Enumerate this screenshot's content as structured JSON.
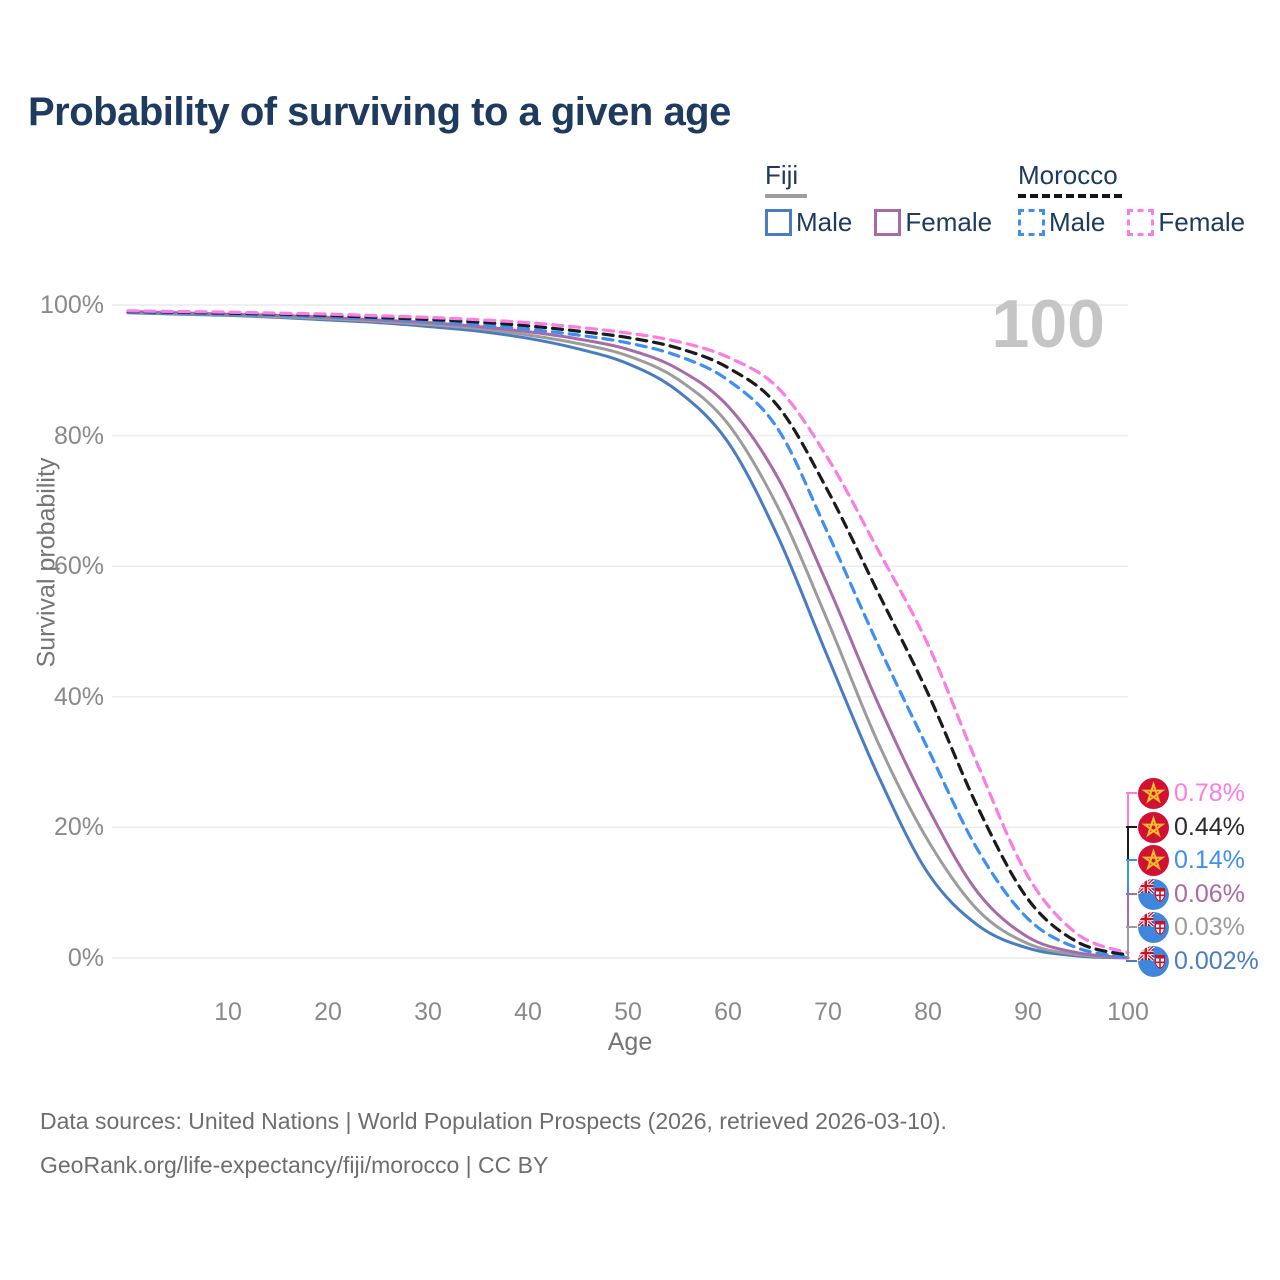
{
  "title": "Probability of surviving to a given age",
  "legend": {
    "groups": [
      {
        "label": "Fiji",
        "line_style": "solid",
        "underline_color": "#9e9e9e",
        "items": [
          {
            "label": "Male",
            "color": "#4a7cc2"
          },
          {
            "label": "Female",
            "color": "#a76ba9"
          }
        ]
      },
      {
        "label": "Morocco",
        "line_style": "dashed",
        "underline_color": "#151515",
        "items": [
          {
            "label": "Male",
            "color": "#3f8ff2"
          },
          {
            "label": "Female",
            "color": "#fb7de4"
          }
        ]
      }
    ]
  },
  "axes": {
    "x": {
      "label": "Age",
      "tick_labels": [
        "10",
        "20",
        "30",
        "40",
        "50",
        "60",
        "70",
        "80",
        "90",
        "100"
      ]
    },
    "y": {
      "label": "Survival probability",
      "tick_labels": [
        "0%",
        "20%",
        "40%",
        "60%",
        "80%",
        "100%"
      ]
    }
  },
  "watermark": "100",
  "footer": {
    "line1": "Data sources: United Nations | World Population Prospects (2026, retrieved 2026-03-10).",
    "line2": "GeoRank.org/life-expectancy/fiji/morocco | CC BY"
  },
  "chart_data": {
    "type": "line",
    "title": "Probability of surviving to a given age",
    "xlabel": "Age",
    "ylabel": "Survival probability",
    "xlim": [
      0,
      100
    ],
    "ylim": [
      0,
      100
    ],
    "grid": "horizontal",
    "legend_position": "top-right",
    "age_highlight": "100",
    "series": [
      {
        "name": "Fiji Male",
        "country": "Fiji",
        "flag": "fiji-flag",
        "color": "#4a7cc2",
        "line": "solid",
        "end_label": "0.002%",
        "points": [
          [
            0,
            98.8
          ],
          [
            5,
            98.6
          ],
          [
            10,
            98.4
          ],
          [
            15,
            98.1
          ],
          [
            20,
            97.7
          ],
          [
            25,
            97.3
          ],
          [
            30,
            96.7
          ],
          [
            35,
            96.0
          ],
          [
            40,
            94.9
          ],
          [
            45,
            93.3
          ],
          [
            50,
            91.0
          ],
          [
            55,
            86.8
          ],
          [
            60,
            79.0
          ],
          [
            65,
            64.5
          ],
          [
            70,
            46.0
          ],
          [
            75,
            28.0
          ],
          [
            80,
            13.0
          ],
          [
            85,
            5.0
          ],
          [
            90,
            1.5
          ],
          [
            95,
            0.3
          ],
          [
            100,
            0.002
          ]
        ]
      },
      {
        "name": "Fiji",
        "country": "Fiji",
        "flag": "fiji-flag",
        "color": "#9c9c9c",
        "line": "solid",
        "end_label": "0.03%",
        "points": [
          [
            0,
            98.9
          ],
          [
            5,
            98.7
          ],
          [
            10,
            98.5
          ],
          [
            15,
            98.2
          ],
          [
            20,
            97.9
          ],
          [
            25,
            97.5
          ],
          [
            30,
            97.0
          ],
          [
            35,
            96.4
          ],
          [
            40,
            95.4
          ],
          [
            45,
            94.1
          ],
          [
            50,
            92.2
          ],
          [
            55,
            88.6
          ],
          [
            60,
            81.8
          ],
          [
            65,
            69.0
          ],
          [
            70,
            51.5
          ],
          [
            75,
            33.0
          ],
          [
            80,
            18.0
          ],
          [
            85,
            7.3
          ],
          [
            90,
            2.2
          ],
          [
            95,
            0.5
          ],
          [
            100,
            0.03
          ]
        ]
      },
      {
        "name": "Fiji Female",
        "country": "Fiji",
        "flag": "fiji-flag",
        "color": "#a76ba9",
        "line": "solid",
        "end_label": "0.06%",
        "points": [
          [
            0,
            99.0
          ],
          [
            5,
            98.8
          ],
          [
            10,
            98.6
          ],
          [
            15,
            98.4
          ],
          [
            20,
            98.1
          ],
          [
            25,
            97.7
          ],
          [
            30,
            97.3
          ],
          [
            35,
            96.7
          ],
          [
            40,
            95.9
          ],
          [
            45,
            94.8
          ],
          [
            50,
            93.2
          ],
          [
            55,
            90.2
          ],
          [
            60,
            84.5
          ],
          [
            65,
            73.5
          ],
          [
            70,
            57.0
          ],
          [
            75,
            39.0
          ],
          [
            80,
            23.0
          ],
          [
            85,
            10.0
          ],
          [
            90,
            3.2
          ],
          [
            95,
            0.8
          ],
          [
            100,
            0.06
          ]
        ]
      },
      {
        "name": "Morocco Male",
        "country": "Morocco",
        "flag": "morocco-flag",
        "color": "#3f8ff2",
        "line": "dashed",
        "end_label": "0.14%",
        "points": [
          [
            0,
            98.9
          ],
          [
            5,
            98.75
          ],
          [
            10,
            98.6
          ],
          [
            15,
            98.4
          ],
          [
            20,
            98.2
          ],
          [
            25,
            97.9
          ],
          [
            30,
            97.5
          ],
          [
            35,
            97.0
          ],
          [
            40,
            96.3
          ],
          [
            45,
            95.4
          ],
          [
            50,
            94.2
          ],
          [
            55,
            92.2
          ],
          [
            60,
            88.5
          ],
          [
            65,
            81.0
          ],
          [
            70,
            65.0
          ],
          [
            75,
            48.0
          ],
          [
            80,
            32.0
          ],
          [
            85,
            16.5
          ],
          [
            90,
            6.0
          ],
          [
            95,
            1.5
          ],
          [
            100,
            0.14
          ]
        ]
      },
      {
        "name": "Morocco",
        "country": "Morocco",
        "flag": "morocco-flag",
        "color": "#1b1b1b",
        "line": "dashed",
        "end_label": "0.44%",
        "points": [
          [
            0,
            99.0
          ],
          [
            5,
            98.9
          ],
          [
            10,
            98.75
          ],
          [
            15,
            98.6
          ],
          [
            20,
            98.4
          ],
          [
            25,
            98.1
          ],
          [
            30,
            97.8
          ],
          [
            35,
            97.4
          ],
          [
            40,
            96.8
          ],
          [
            45,
            96.0
          ],
          [
            50,
            95.0
          ],
          [
            55,
            93.4
          ],
          [
            60,
            90.4
          ],
          [
            65,
            84.5
          ],
          [
            70,
            71.5
          ],
          [
            75,
            56.0
          ],
          [
            80,
            40.5
          ],
          [
            85,
            23.0
          ],
          [
            90,
            9.0
          ],
          [
            95,
            2.4
          ],
          [
            100,
            0.44
          ]
        ]
      },
      {
        "name": "Morocco Female",
        "country": "Morocco",
        "flag": "morocco-flag",
        "color": "#fb7de4",
        "line": "dashed",
        "end_label": "0.78%",
        "points": [
          [
            0,
            99.1
          ],
          [
            5,
            99.0
          ],
          [
            10,
            98.9
          ],
          [
            15,
            98.75
          ],
          [
            20,
            98.6
          ],
          [
            25,
            98.35
          ],
          [
            30,
            98.1
          ],
          [
            35,
            97.75
          ],
          [
            40,
            97.3
          ],
          [
            45,
            96.6
          ],
          [
            50,
            95.7
          ],
          [
            55,
            94.4
          ],
          [
            60,
            92.0
          ],
          [
            65,
            87.3
          ],
          [
            70,
            76.5
          ],
          [
            75,
            62.5
          ],
          [
            80,
            48.0
          ],
          [
            85,
            29.5
          ],
          [
            90,
            12.5
          ],
          [
            95,
            3.6
          ],
          [
            100,
            0.78
          ]
        ]
      }
    ]
  }
}
